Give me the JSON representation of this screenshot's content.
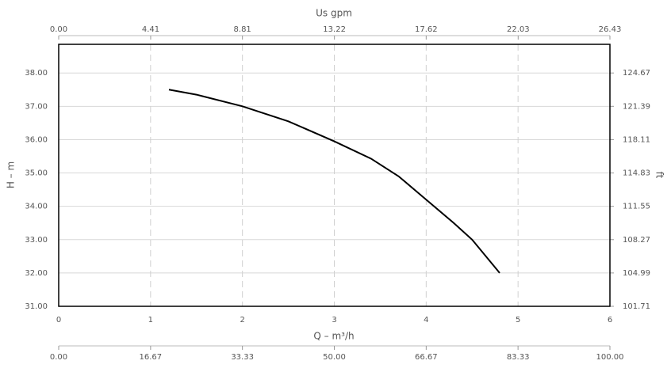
{
  "chart_data": {
    "type": "line",
    "x_label": "Q – m³/h",
    "y_label": "H – m",
    "y2_label": "ft",
    "x2_label": "Us gpm",
    "x": [
      1.2,
      1.5,
      2,
      2.5,
      3,
      3.4,
      3.7,
      4,
      4.3,
      4.5,
      4.8
    ],
    "series": [
      {
        "color": "#000000",
        "values": [
          37.5,
          37.35,
          37.0,
          36.55,
          35.95,
          35.43,
          34.9,
          34.2,
          33.5,
          33.0,
          32.0
        ]
      }
    ],
    "xlim": [
      0,
      6
    ],
    "xticks": [
      0,
      1,
      2,
      3,
      4,
      5,
      6
    ],
    "ylim": [
      31,
      38.86
    ],
    "yticks": [
      {
        "value": 31,
        "label": "31.00"
      },
      {
        "value": 32,
        "label": "32.00"
      },
      {
        "value": 33,
        "label": "33.00"
      },
      {
        "value": 34,
        "label": "34.00"
      },
      {
        "value": 35,
        "label": "35.00"
      },
      {
        "value": 36,
        "label": "36.00"
      },
      {
        "value": 37,
        "label": "37.00"
      },
      {
        "value": 38,
        "label": "38.00"
      }
    ],
    "y2lim": [
      101.71,
      127.49
    ],
    "y2ticks": [
      101.71,
      104.99,
      108.27,
      111.55,
      114.83,
      118.11,
      121.39,
      124.67
    ],
    "x2lim": [
      0,
      26.43
    ],
    "x2ticks": [
      {
        "value": 0,
        "label": "0.00"
      },
      4.41,
      8.81,
      13.22,
      17.62,
      22.03,
      26.43
    ],
    "x3lim": [
      0,
      100
    ],
    "x3ticks": [
      {
        "value": 0,
        "label": "0.00"
      },
      16.67,
      33.33,
      {
        "value": 50,
        "label": "50.00"
      },
      66.67,
      83.33,
      {
        "value": 100,
        "label": "100.00"
      }
    ],
    "grid": true
  }
}
